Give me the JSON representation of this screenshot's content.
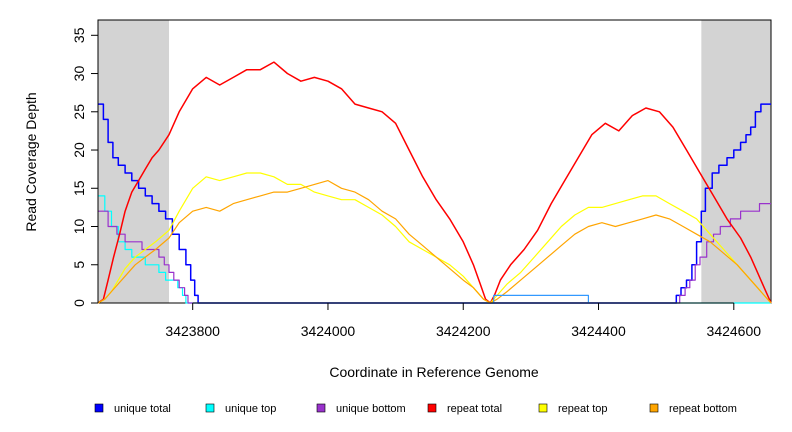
{
  "chart_data": {
    "type": "line",
    "title": "",
    "xlabel": "Coordinate in Reference Genome",
    "ylabel": "Read Coverage Depth",
    "xlim": [
      3423660,
      3424655
    ],
    "ylim": [
      0,
      37
    ],
    "x_ticks": [
      3423800,
      3424000,
      3424200,
      3424400,
      3424600
    ],
    "y_ticks": [
      0,
      5,
      10,
      15,
      20,
      25,
      30,
      35
    ],
    "x_tick_labels": [
      "3423800",
      "3424000",
      "3424200",
      "3424400",
      "3424600"
    ],
    "y_tick_labels": [
      "0",
      "5",
      "10",
      "15",
      "20",
      "25",
      "30",
      "35"
    ],
    "grid": false,
    "legend_position": "bottom",
    "shaded_regions": [
      {
        "x0": 3423660,
        "x1": 3423765,
        "color": "#d3d3d3"
      },
      {
        "x0": 3424552,
        "x1": 3424655,
        "color": "#d3d3d3"
      }
    ],
    "series": [
      {
        "name": "unique total",
        "color": "#0000ff",
        "step": true,
        "points": [
          [
            3423660,
            26
          ],
          [
            3423668,
            24
          ],
          [
            3423675,
            21
          ],
          [
            3423682,
            19
          ],
          [
            3423690,
            18
          ],
          [
            3423700,
            17
          ],
          [
            3423710,
            16
          ],
          [
            3423720,
            15
          ],
          [
            3423730,
            14
          ],
          [
            3423740,
            13
          ],
          [
            3423750,
            12
          ],
          [
            3423760,
            11
          ],
          [
            3423770,
            9
          ],
          [
            3423780,
            7
          ],
          [
            3423790,
            5
          ],
          [
            3423797,
            3
          ],
          [
            3423803,
            1
          ],
          [
            3423808,
            0
          ],
          [
            3424500,
            0
          ],
          [
            3424515,
            1
          ],
          [
            3424522,
            2
          ],
          [
            3424530,
            3
          ],
          [
            3424538,
            5
          ],
          [
            3424545,
            8
          ],
          [
            3424552,
            12
          ],
          [
            3424558,
            15
          ],
          [
            3424568,
            17
          ],
          [
            3424578,
            18
          ],
          [
            3424590,
            19
          ],
          [
            3424600,
            20
          ],
          [
            3424610,
            21
          ],
          [
            3424618,
            22
          ],
          [
            3424625,
            23
          ],
          [
            3424632,
            25
          ],
          [
            3424640,
            26
          ],
          [
            3424655,
            26
          ]
        ]
      },
      {
        "name": "unique top",
        "color": "#00ffff",
        "step": true,
        "points": [
          [
            3423660,
            14
          ],
          [
            3423670,
            12
          ],
          [
            3423680,
            10
          ],
          [
            3423690,
            8
          ],
          [
            3423700,
            7
          ],
          [
            3423710,
            6
          ],
          [
            3423720,
            6
          ],
          [
            3423730,
            5
          ],
          [
            3423740,
            5
          ],
          [
            3423750,
            4
          ],
          [
            3423760,
            3
          ],
          [
            3423770,
            3
          ],
          [
            3423778,
            2
          ],
          [
            3423785,
            1
          ],
          [
            3423790,
            0
          ],
          [
            3424655,
            0
          ]
        ]
      },
      {
        "name": "unique bottom",
        "color": "#9932cc",
        "step": true,
        "points": [
          [
            3423660,
            12
          ],
          [
            3423675,
            10
          ],
          [
            3423688,
            9
          ],
          [
            3423700,
            8
          ],
          [
            3423712,
            8
          ],
          [
            3423725,
            7
          ],
          [
            3423738,
            7
          ],
          [
            3423750,
            6
          ],
          [
            3423758,
            5
          ],
          [
            3423765,
            4
          ],
          [
            3423772,
            3
          ],
          [
            3423780,
            2
          ],
          [
            3423788,
            1
          ],
          [
            3423793,
            0
          ],
          [
            3424510,
            0
          ],
          [
            3424520,
            1
          ],
          [
            3424528,
            2
          ],
          [
            3424535,
            3
          ],
          [
            3424543,
            5
          ],
          [
            3424550,
            6
          ],
          [
            3424560,
            8
          ],
          [
            3424570,
            9
          ],
          [
            3424580,
            10
          ],
          [
            3424595,
            11
          ],
          [
            3424610,
            12
          ],
          [
            3424625,
            12
          ],
          [
            3424638,
            13
          ],
          [
            3424655,
            13
          ]
        ]
      },
      {
        "name": "repeat total",
        "color": "#ff0000",
        "step": false,
        "points": [
          [
            3423660,
            0
          ],
          [
            3423668,
            0.5
          ],
          [
            3423675,
            3
          ],
          [
            3423683,
            6
          ],
          [
            3423692,
            9
          ],
          [
            3423700,
            12
          ],
          [
            3423710,
            14.5
          ],
          [
            3423720,
            16
          ],
          [
            3423730,
            17.5
          ],
          [
            3423740,
            19
          ],
          [
            3423750,
            20
          ],
          [
            3423765,
            22
          ],
          [
            3423780,
            25
          ],
          [
            3423800,
            28
          ],
          [
            3423820,
            29.5
          ],
          [
            3423840,
            28.5
          ],
          [
            3423860,
            29.5
          ],
          [
            3423880,
            30.5
          ],
          [
            3423900,
            30.5
          ],
          [
            3423920,
            31.5
          ],
          [
            3423940,
            30
          ],
          [
            3423960,
            29
          ],
          [
            3423980,
            29.5
          ],
          [
            3424000,
            29
          ],
          [
            3424020,
            28
          ],
          [
            3424040,
            26
          ],
          [
            3424060,
            25.5
          ],
          [
            3424080,
            25
          ],
          [
            3424100,
            23.5
          ],
          [
            3424120,
            20
          ],
          [
            3424140,
            16.5
          ],
          [
            3424160,
            13.5
          ],
          [
            3424180,
            11
          ],
          [
            3424200,
            8
          ],
          [
            3424215,
            5
          ],
          [
            3424225,
            2.5
          ],
          [
            3424233,
            0.5
          ],
          [
            3424240,
            0
          ],
          [
            3424246,
            1
          ],
          [
            3424255,
            3
          ],
          [
            3424270,
            5
          ],
          [
            3424290,
            7
          ],
          [
            3424310,
            9.5
          ],
          [
            3424330,
            13
          ],
          [
            3424350,
            16
          ],
          [
            3424370,
            19
          ],
          [
            3424390,
            22
          ],
          [
            3424410,
            23.5
          ],
          [
            3424430,
            22.5
          ],
          [
            3424450,
            24.5
          ],
          [
            3424470,
            25.5
          ],
          [
            3424490,
            25
          ],
          [
            3424510,
            23
          ],
          [
            3424530,
            20
          ],
          [
            3424550,
            17
          ],
          [
            3424570,
            14
          ],
          [
            3424590,
            11
          ],
          [
            3424610,
            8.5
          ],
          [
            3424625,
            6
          ],
          [
            3424635,
            4
          ],
          [
            3424645,
            2
          ],
          [
            3424655,
            0
          ]
        ]
      },
      {
        "name": "repeat top",
        "color": "#ffff00",
        "step": false,
        "points": [
          [
            3423660,
            0
          ],
          [
            3423670,
            0.5
          ],
          [
            3423680,
            1.5
          ],
          [
            3423690,
            3
          ],
          [
            3423700,
            4.5
          ],
          [
            3423715,
            6
          ],
          [
            3423730,
            7
          ],
          [
            3423745,
            8
          ],
          [
            3423765,
            9.5
          ],
          [
            3423780,
            12
          ],
          [
            3423800,
            15
          ],
          [
            3423820,
            16.5
          ],
          [
            3423840,
            16
          ],
          [
            3423860,
            16.5
          ],
          [
            3423880,
            17
          ],
          [
            3423900,
            17
          ],
          [
            3423920,
            16.5
          ],
          [
            3423940,
            15.5
          ],
          [
            3423960,
            15.5
          ],
          [
            3423980,
            14.5
          ],
          [
            3424000,
            14
          ],
          [
            3424020,
            13.5
          ],
          [
            3424040,
            13.5
          ],
          [
            3424060,
            12.5
          ],
          [
            3424080,
            11.5
          ],
          [
            3424100,
            10
          ],
          [
            3424120,
            8
          ],
          [
            3424140,
            7
          ],
          [
            3424160,
            6
          ],
          [
            3424180,
            5
          ],
          [
            3424200,
            3.5
          ],
          [
            3424215,
            2
          ],
          [
            3424230,
            0.5
          ],
          [
            3424240,
            0
          ],
          [
            3424250,
            1
          ],
          [
            3424265,
            2.5
          ],
          [
            3424285,
            4
          ],
          [
            3424305,
            6
          ],
          [
            3424325,
            8
          ],
          [
            3424345,
            10
          ],
          [
            3424365,
            11.5
          ],
          [
            3424385,
            12.5
          ],
          [
            3424405,
            12.5
          ],
          [
            3424425,
            13
          ],
          [
            3424445,
            13.5
          ],
          [
            3424465,
            14
          ],
          [
            3424485,
            14
          ],
          [
            3424505,
            13
          ],
          [
            3424525,
            12
          ],
          [
            3424545,
            11
          ],
          [
            3424565,
            9
          ],
          [
            3424585,
            7
          ],
          [
            3424605,
            5
          ],
          [
            3424620,
            3.5
          ],
          [
            3424635,
            2
          ],
          [
            3424645,
            1
          ],
          [
            3424655,
            0
          ]
        ]
      },
      {
        "name": "repeat bottom",
        "color": "#ffa500",
        "step": false,
        "points": [
          [
            3423660,
            0
          ],
          [
            3423670,
            0.5
          ],
          [
            3423680,
            1.5
          ],
          [
            3423690,
            2.5
          ],
          [
            3423700,
            3.5
          ],
          [
            3423715,
            5
          ],
          [
            3423730,
            6
          ],
          [
            3423745,
            7
          ],
          [
            3423765,
            8.5
          ],
          [
            3423780,
            10.5
          ],
          [
            3423800,
            12
          ],
          [
            3423820,
            12.5
          ],
          [
            3423840,
            12
          ],
          [
            3423860,
            13
          ],
          [
            3423880,
            13.5
          ],
          [
            3423900,
            14
          ],
          [
            3423920,
            14.5
          ],
          [
            3423940,
            14.5
          ],
          [
            3423960,
            15
          ],
          [
            3423980,
            15.5
          ],
          [
            3424000,
            16
          ],
          [
            3424020,
            15
          ],
          [
            3424040,
            14.5
          ],
          [
            3424060,
            13.5
          ],
          [
            3424080,
            12
          ],
          [
            3424100,
            11
          ],
          [
            3424120,
            9
          ],
          [
            3424140,
            7.5
          ],
          [
            3424160,
            6
          ],
          [
            3424180,
            4.5
          ],
          [
            3424200,
            3
          ],
          [
            3424215,
            2
          ],
          [
            3424230,
            0.5
          ],
          [
            3424240,
            0
          ],
          [
            3424250,
            0.5
          ],
          [
            3424265,
            1.5
          ],
          [
            3424285,
            3
          ],
          [
            3424305,
            4.5
          ],
          [
            3424325,
            6
          ],
          [
            3424345,
            7.5
          ],
          [
            3424365,
            9
          ],
          [
            3424385,
            10
          ],
          [
            3424405,
            10.5
          ],
          [
            3424425,
            10
          ],
          [
            3424445,
            10.5
          ],
          [
            3424465,
            11
          ],
          [
            3424485,
            11.5
          ],
          [
            3424505,
            11
          ],
          [
            3424525,
            10
          ],
          [
            3424545,
            9
          ],
          [
            3424565,
            8
          ],
          [
            3424585,
            6.5
          ],
          [
            3424605,
            5
          ],
          [
            3424620,
            3.5
          ],
          [
            3424635,
            2
          ],
          [
            3424645,
            1
          ],
          [
            3424655,
            0
          ]
        ]
      },
      {
        "name": "",
        "color": "#3399ff",
        "step": true,
        "legend": false,
        "points": [
          [
            3424230,
            0
          ],
          [
            3424245,
            1
          ],
          [
            3424385,
            1
          ],
          [
            3424385,
            0
          ]
        ]
      }
    ]
  }
}
